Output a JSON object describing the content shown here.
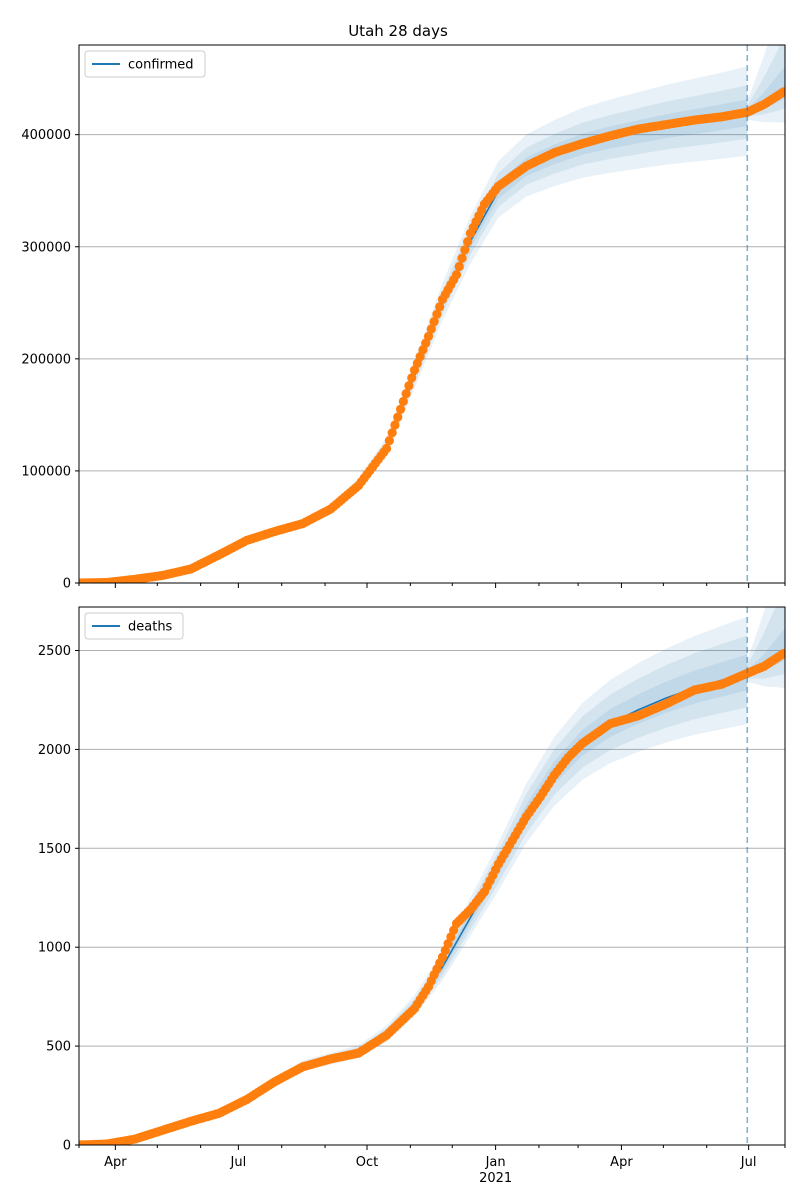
{
  "title": "Utah 28 days",
  "colors": {
    "model_line": "#1f77b4",
    "band": "#1f77b4",
    "observed": "#ff7f0e",
    "grid": "#b0b0b0",
    "marker_line": "#1f77b4"
  },
  "chart_data": [
    {
      "type": "line",
      "legend": {
        "entries": [
          "confirmed"
        ],
        "placement": "top-left"
      },
      "xlim_days": [
        0,
        505
      ],
      "ylim": [
        0,
        480000
      ],
      "yticks": [
        0,
        100000,
        200000,
        300000,
        400000
      ],
      "ytick_labels": [
        "0",
        "100000",
        "200000",
        "300000",
        "400000"
      ],
      "grid": "y-major",
      "forecast_start_day": 478,
      "series": [
        {
          "name": "confirmed",
          "kind": "model",
          "x": [
            0,
            20,
            40,
            60,
            80,
            100,
            120,
            140,
            160,
            180,
            200,
            220,
            240,
            260,
            280,
            300,
            320,
            340,
            360,
            380,
            400,
            420,
            440,
            460,
            478
          ],
          "y": [
            0,
            600,
            3500,
            7000,
            13000,
            26000,
            39000,
            47000,
            54000,
            66000,
            88000,
            122000,
            185000,
            250000,
            305000,
            350000,
            371000,
            382000,
            391000,
            397000,
            402000,
            407000,
            411000,
            415000,
            419000
          ],
          "band_widths": [
            [
              0.03,
              0.06,
              0.1
            ],
            [
              0.02,
              0.045,
              0.08
            ]
          ]
        },
        {
          "name": "",
          "kind": "observed",
          "x": [
            0,
            20,
            40,
            60,
            80,
            100,
            120,
            140,
            160,
            180,
            200,
            220,
            240,
            250,
            260,
            270,
            280,
            290,
            300,
            320,
            340,
            360,
            380,
            400,
            420,
            440,
            460,
            478,
            490,
            505
          ],
          "y": [
            0,
            500,
            3300,
            6800,
            12500,
            25000,
            38000,
            46000,
            53000,
            66000,
            87000,
            120000,
            190000,
            220000,
            253000,
            275000,
            312000,
            338000,
            354000,
            372000,
            384000,
            392000,
            399000,
            405000,
            409000,
            413000,
            416000,
            420000,
            427000,
            439000
          ]
        }
      ]
    },
    {
      "type": "line",
      "legend": {
        "entries": [
          "deaths"
        ],
        "placement": "top-left"
      },
      "xlim_days": [
        0,
        505
      ],
      "ylim": [
        0,
        2720
      ],
      "yticks": [
        0,
        500,
        1000,
        1500,
        2000,
        2500
      ],
      "ytick_labels": [
        "0",
        "500",
        "1000",
        "1500",
        "2000",
        "2500"
      ],
      "grid": "y-major",
      "forecast_start_day": 478,
      "xtick_labels": [
        {
          "day": 26,
          "label": "Apr"
        },
        {
          "day": 114,
          "label": "Jul"
        },
        {
          "day": 206,
          "label": "Oct"
        },
        {
          "day": 298,
          "label": "Jan"
        },
        {
          "day": 388,
          "label": "Apr"
        },
        {
          "day": 479,
          "label": "Jul"
        }
      ],
      "xtick_year": {
        "day": 298,
        "label": "2021"
      },
      "x_minor_ticks_days": [
        0,
        56,
        87,
        145,
        176,
        237,
        267,
        329,
        357,
        418,
        449,
        505
      ],
      "series": [
        {
          "name": "deaths",
          "kind": "model",
          "x": [
            0,
            20,
            40,
            60,
            80,
            100,
            120,
            140,
            160,
            180,
            200,
            220,
            240,
            260,
            280,
            300,
            320,
            340,
            360,
            380,
            400,
            420,
            440,
            460,
            478
          ],
          "y": [
            0,
            5,
            30,
            75,
            120,
            160,
            230,
            320,
            400,
            435,
            470,
            560,
            700,
            900,
            1150,
            1400,
            1670,
            1880,
            2030,
            2130,
            2200,
            2260,
            2310,
            2350,
            2385
          ],
          "band_widths": [
            [
              0.04,
              0.08,
              0.12
            ],
            [
              0.02,
              0.055,
              0.09
            ]
          ]
        },
        {
          "name": "",
          "kind": "observed",
          "x": [
            0,
            20,
            40,
            60,
            80,
            100,
            120,
            140,
            160,
            180,
            200,
            220,
            240,
            250,
            260,
            270,
            280,
            290,
            300,
            310,
            320,
            330,
            340,
            350,
            360,
            380,
            400,
            420,
            440,
            460,
            478,
            490,
            505
          ],
          "y": [
            0,
            5,
            30,
            75,
            120,
            160,
            230,
            320,
            395,
            435,
            465,
            555,
            690,
            800,
            950,
            1120,
            1190,
            1280,
            1420,
            1540,
            1660,
            1760,
            1870,
            1960,
            2030,
            2130,
            2170,
            2230,
            2300,
            2330,
            2385,
            2420,
            2490
          ]
        }
      ]
    }
  ]
}
